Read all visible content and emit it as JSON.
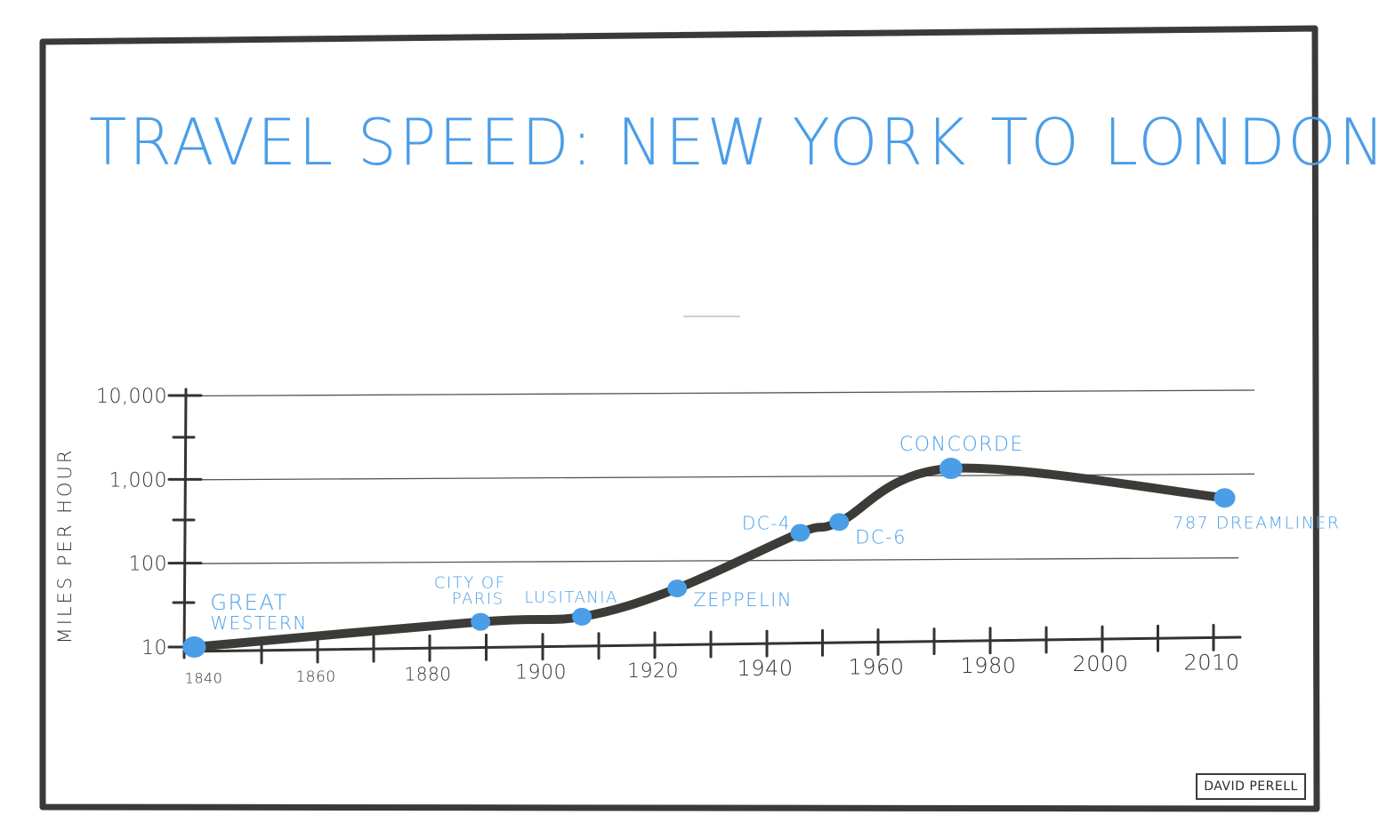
{
  "title": "TRAVEL SPEED: NEW YORK TO LONDON",
  "credit": "DAVID PERELL",
  "colors": {
    "accent": "#4a9ee8",
    "line": "#3d3b38",
    "frame": "#3a3a3a"
  },
  "chart_data": {
    "type": "line",
    "title": "TRAVEL SPEED: NEW YORK TO LONDON",
    "xlabel": "",
    "ylabel": "MILES PER HOUR",
    "yscale": "log",
    "ylim": [
      10,
      10000
    ],
    "y_ticks": [
      {
        "value": 10,
        "label": "10"
      },
      {
        "value": 100,
        "label": "100"
      },
      {
        "value": 1000,
        "label": "1,000"
      },
      {
        "value": 10000,
        "label": "10,000"
      }
    ],
    "x_ticks": [
      "1840",
      "1860",
      "1880",
      "1900",
      "1920",
      "1940",
      "1960",
      "1980",
      "2000",
      "2010"
    ],
    "grid": true,
    "points": [
      {
        "label": "GREAT WESTERN",
        "x": 1838,
        "y": 10
      },
      {
        "label": "CITY OF PARIS",
        "x": 1889,
        "y": 20
      },
      {
        "label": "LUSITANIA",
        "x": 1907,
        "y": 23
      },
      {
        "label": "ZEPPELIN",
        "x": 1924,
        "y": 50
      },
      {
        "label": "DC-4",
        "x": 1946,
        "y": 230
      },
      {
        "label": "DC-6",
        "x": 1953,
        "y": 310
      },
      {
        "label": "CONCORDE",
        "x": 1973,
        "y": 1350
      },
      {
        "label": "787 DREAMLINER",
        "x": 2011,
        "y": 600
      }
    ]
  }
}
